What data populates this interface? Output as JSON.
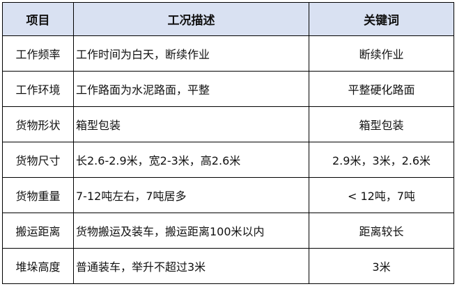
{
  "colors": {
    "header_bg": "#d9e1f2",
    "border": "#000000"
  },
  "headers": [
    "项目",
    "工况描述",
    "关键词"
  ],
  "rows": [
    [
      "工作频率",
      "工作时间为白天，断续作业",
      "断续作业"
    ],
    [
      "工作环境",
      "工作路面为水泥路面，平整",
      "平整硬化路面"
    ],
    [
      "货物形状",
      "箱型包装",
      "箱型包装"
    ],
    [
      "货物尺寸",
      "长2.6-2.9米，宽2-3米，高2.6米",
      "2.9米，3米，2.6米"
    ],
    [
      "货物重量",
      "7-12吨左右，7吨居多",
      "< 12吨，7吨"
    ],
    [
      "搬运距离",
      "货物搬运及装车，搬运距离100米以内",
      "距离较长"
    ],
    [
      "堆垛高度",
      "普通装车，举升不超过3米",
      "3米"
    ]
  ]
}
